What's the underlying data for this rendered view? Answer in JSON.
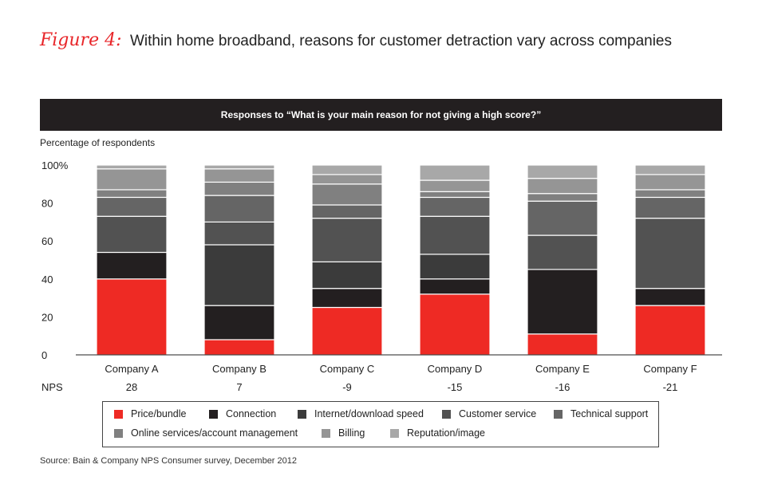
{
  "figure": {
    "label": "Figure 4:",
    "title": "Within home broadband, reasons for customer detraction vary across companies"
  },
  "banner": "Responses to “What is your main reason for not giving a high score?”",
  "source": "Source: Bain & Company NPS Consumer survey, December 2012",
  "chart_data": {
    "type": "bar",
    "stacked": true,
    "ylabel": "Percentage of respondents",
    "ylim": [
      0,
      100
    ],
    "yticks": [
      "0",
      "20",
      "40",
      "60",
      "80",
      "100%"
    ],
    "categories": [
      "Company A",
      "Company B",
      "Company C",
      "Company D",
      "Company E",
      "Company F"
    ],
    "nps_label": "NPS",
    "nps": [
      "28",
      "7",
      "-9",
      "-15",
      "-16",
      "-21"
    ],
    "series": [
      {
        "name": "Price/bundle",
        "color": "#ee2a24",
        "values": [
          40,
          8,
          25,
          32,
          11,
          26
        ]
      },
      {
        "name": "Connection",
        "color": "#231f20",
        "values": [
          14,
          18,
          10,
          8,
          34,
          9
        ]
      },
      {
        "name": "Internet/download speed",
        "color": "#3b3b3b",
        "values": [
          0,
          32,
          14,
          13,
          0,
          0
        ]
      },
      {
        "name": "Customer service",
        "color": "#525252",
        "values": [
          19,
          12,
          23,
          20,
          18,
          37
        ]
      },
      {
        "name": "Technical support",
        "color": "#656565",
        "values": [
          10,
          14,
          7,
          10,
          18,
          11
        ]
      },
      {
        "name": "Online services/account management",
        "color": "#808080",
        "values": [
          4,
          7,
          11,
          3,
          4,
          4
        ]
      },
      {
        "name": "Billing",
        "color": "#959595",
        "values": [
          11,
          7,
          5,
          6,
          8,
          8
        ]
      },
      {
        "name": "Reputation/image",
        "color": "#a8a8a8",
        "values": [
          2,
          2,
          5,
          8,
          7,
          5
        ]
      }
    ],
    "legend_position": "bottom"
  }
}
